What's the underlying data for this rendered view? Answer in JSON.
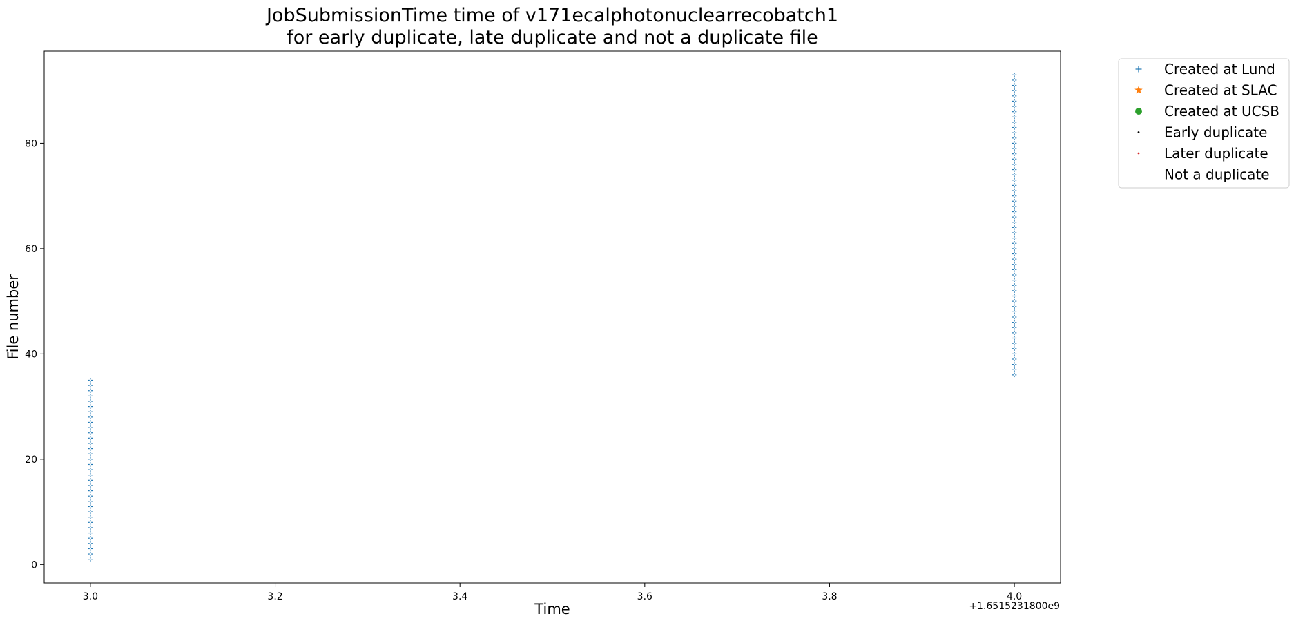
{
  "chart_data": {
    "type": "scatter",
    "title_line1": "JobSubmissionTime time of v171ecalphotonuclearrecobatch1",
    "title_line2": "for early duplicate, late duplicate and not a duplicate file",
    "xlabel": "Time",
    "ylabel": "File number",
    "x_offset_label": "+1.6515231800e9",
    "xlim": [
      2.95,
      4.05
    ],
    "ylim": [
      -3.5,
      97.5
    ],
    "x_ticks": [
      3.0,
      3.2,
      3.4,
      3.6,
      3.8,
      4.0
    ],
    "x_tick_labels": [
      "3.0",
      "3.2",
      "3.4",
      "3.6",
      "3.8",
      "4.0"
    ],
    "y_ticks": [
      0,
      20,
      40,
      60,
      80
    ],
    "y_tick_labels": [
      "0",
      "20",
      "40",
      "60",
      "80"
    ],
    "grid": false,
    "legend_position": "outside-top-right",
    "legend": [
      {
        "label": "Created at Lund",
        "marker": "plus",
        "color": "#1f77b4"
      },
      {
        "label": "Created at SLAC",
        "marker": "star",
        "color": "#ff7f0e"
      },
      {
        "label": "Created at UCSB",
        "marker": "circle",
        "color": "#2ca02c"
      },
      {
        "label": "Early duplicate",
        "marker": "dot",
        "color": "#000000"
      },
      {
        "label": "Later duplicate",
        "marker": "dot",
        "color": "#d62728"
      },
      {
        "label": "Not a duplicate",
        "marker": "none",
        "color": "#ffffff"
      }
    ],
    "series": [
      {
        "name": "Created at Lund",
        "color": "#1f77b4",
        "marker": "plus",
        "points": [
          {
            "x": 3.0,
            "y_from": 1,
            "y_to": 35
          },
          {
            "x": 4.0,
            "y_from": 36,
            "y_to": 93
          }
        ]
      },
      {
        "name": "Not a duplicate",
        "color": "#ffffff",
        "marker": "dot",
        "points": [
          {
            "x": 3.0,
            "y_from": 1,
            "y_to": 35
          },
          {
            "x": 4.0,
            "y_from": 36,
            "y_to": 93
          }
        ]
      }
    ]
  }
}
